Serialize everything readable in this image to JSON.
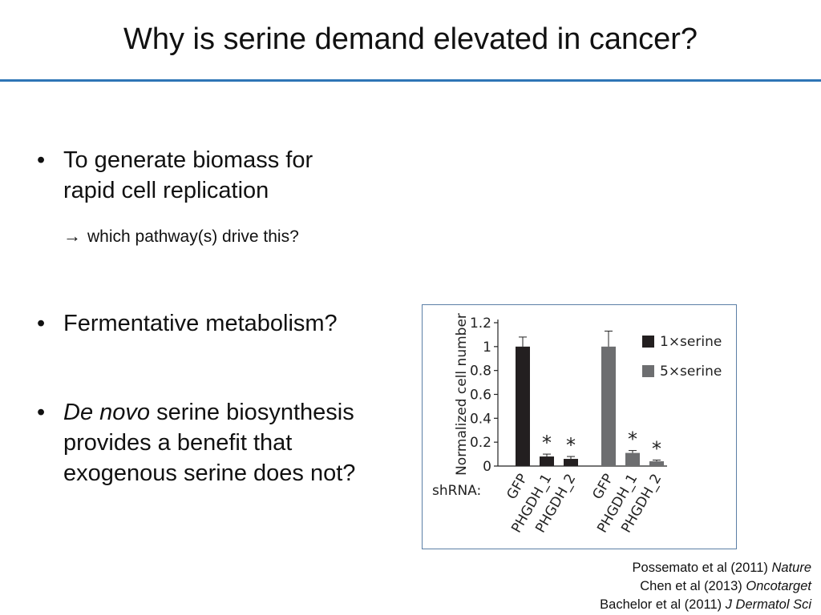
{
  "slide": {
    "title": "Why is serine demand elevated in cancer?"
  },
  "bullets": [
    {
      "lines": [
        "To generate biomass for",
        "rapid cell replication"
      ]
    },
    {
      "lines": [
        "Fermentative metabolism?"
      ]
    },
    {
      "lines_prefix_italic": "De novo",
      "lines": [
        " serine biosynthesis",
        "provides a benefit that",
        "exogenous serine does not?"
      ]
    }
  ],
  "sub_point": {
    "arrow": "→",
    "text": "which pathway(s) drive this?"
  },
  "chart_data": {
    "type": "bar",
    "ylabel": "Normalized cell number",
    "ylim": [
      0,
      1.2
    ],
    "yticks": [
      "0",
      "0.2",
      "0.4",
      "0.6",
      "0.8",
      "1",
      "1.2"
    ],
    "x_prefix": "shRNA:",
    "groups": [
      {
        "series": "1×serine",
        "categories": [
          "GFP",
          "PHGDH_1",
          "PHGDH_2"
        ],
        "values": [
          1.0,
          0.08,
          0.06
        ],
        "errors": [
          0.08,
          0.02,
          0.02
        ],
        "significance": [
          "",
          "*",
          "*"
        ]
      },
      {
        "series": "5×serine",
        "categories": [
          "GFP",
          "PHGDH_1",
          "PHGDH_2"
        ],
        "values": [
          1.0,
          0.11,
          0.04
        ],
        "errors": [
          0.13,
          0.02,
          0.01
        ],
        "significance": [
          "",
          "*",
          "*"
        ]
      }
    ],
    "legend": [
      {
        "label": "1×serine",
        "color": "#231f20"
      },
      {
        "label": "5×serine",
        "color": "#6d6e70"
      }
    ],
    "legend_position": "top-right"
  },
  "references": [
    {
      "prefix": "Possemato et al (2011) ",
      "journal": "Nature"
    },
    {
      "prefix": "Chen et al (2013) ",
      "journal": "Oncotarget"
    },
    {
      "prefix": "Bachelor et al (2011) ",
      "journal": "J Dermatol Sci"
    }
  ]
}
